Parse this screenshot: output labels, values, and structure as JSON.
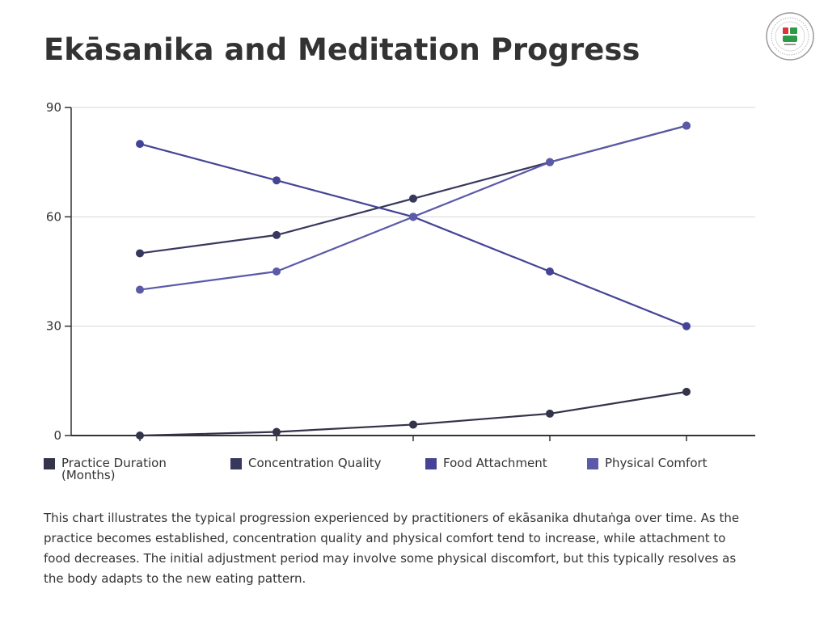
{
  "title": "Ekāsanika and Meditation Progress",
  "description": "This chart illustrates the typical progression experienced by practitioners of ekāsanika dhutaṅga over time. As the practice becomes established, concentration quality and physical comfort tend to increase, while attachment to food decreases. The initial adjustment period may involve some physical discomfort, but this typically resolves as the body adapts to the new eating pattern.",
  "logo": {
    "icon": "organization-seal-logo"
  },
  "chart_data": {
    "type": "line",
    "title": "Ekāsanika and Meditation Progress",
    "xlabel": "",
    "ylabel": "",
    "ylim": [
      0,
      90
    ],
    "yticks": [
      0,
      30,
      60,
      90
    ],
    "x": [
      1,
      2,
      3,
      4,
      5
    ],
    "grid": true,
    "legend": "bottom",
    "series": [
      {
        "name": "Practice Duration (Months)",
        "color": "#33334a",
        "values": [
          0,
          1,
          3,
          6,
          12
        ]
      },
      {
        "name": "Concentration Quality",
        "color": "#38385e",
        "values": [
          50,
          55,
          65,
          75,
          85
        ]
      },
      {
        "name": "Food Attachment",
        "color": "#444496",
        "values": [
          80,
          70,
          60,
          45,
          30
        ]
      },
      {
        "name": "Physical Comfort",
        "color": "#5a5aa6",
        "values": [
          40,
          45,
          60,
          75,
          85
        ]
      }
    ]
  }
}
